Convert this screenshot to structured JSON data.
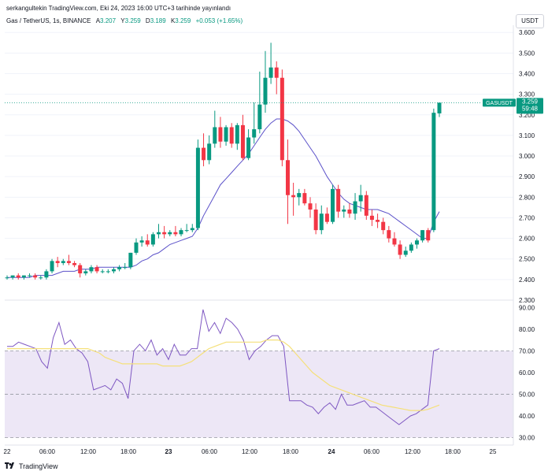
{
  "header": {
    "attribution": "serkangultekin TradingView.com, Eki 24, 2023 16:00 UTC+3 tarihinde yayınlandı"
  },
  "legend": {
    "symbol": "Gas / TetherUS, 1s, BINANCE",
    "open_label": "A",
    "open": "3.207",
    "high_label": "Y",
    "high": "3.259",
    "low_label": "D",
    "low": "3.189",
    "close_label": "K",
    "close": "3.259",
    "change": "+0.053 (+1.65%)"
  },
  "currency_button": "USDT",
  "price_tag": {
    "symbol": "GASUSDT",
    "price": "3.259",
    "countdown": "59:48"
  },
  "colors": {
    "up": "#089981",
    "down": "#f23645",
    "ma": "#5b51c9",
    "rsi": "#7e57c2",
    "rsi_ma": "#f5e07a",
    "rsi_band": "#ede7f6"
  },
  "footer": {
    "brand": "TradingView",
    "logo_icon": "tradingview-logo-icon"
  },
  "chart_data": [
    {
      "type": "candlestick",
      "title": "Gas / TetherUS, 1s, BINANCE",
      "y_ticks": [
        "3.600",
        "3.500",
        "3.400",
        "3.300",
        "3.200",
        "3.100",
        "3.000",
        "2.900",
        "2.800",
        "2.700",
        "2.600",
        "2.500",
        "2.400",
        "2.300"
      ],
      "ylim": [
        2.3,
        3.62
      ],
      "x_ticks": [
        "22",
        "06:00",
        "12:00",
        "18:00",
        "23",
        "06:00",
        "12:00",
        "18:00",
        "24",
        "06:00",
        "12:00",
        "18:00",
        "25"
      ],
      "candles": [
        [
          2.41,
          2.42,
          2.4,
          2.41
        ],
        [
          2.41,
          2.42,
          2.4,
          2.42
        ],
        [
          2.42,
          2.43,
          2.4,
          2.41
        ],
        [
          2.41,
          2.42,
          2.4,
          2.42
        ],
        [
          2.42,
          2.43,
          2.41,
          2.42
        ],
        [
          2.42,
          2.43,
          2.4,
          2.41
        ],
        [
          2.41,
          2.42,
          2.4,
          2.41
        ],
        [
          2.41,
          2.45,
          2.4,
          2.44
        ],
        [
          2.44,
          2.5,
          2.43,
          2.49
        ],
        [
          2.49,
          2.51,
          2.46,
          2.48
        ],
        [
          2.48,
          2.5,
          2.47,
          2.49
        ],
        [
          2.49,
          2.52,
          2.47,
          2.48
        ],
        [
          2.48,
          2.49,
          2.46,
          2.47
        ],
        [
          2.47,
          2.48,
          2.41,
          2.43
        ],
        [
          2.43,
          2.45,
          2.42,
          2.44
        ],
        [
          2.44,
          2.47,
          2.43,
          2.46
        ],
        [
          2.46,
          2.47,
          2.43,
          2.44
        ],
        [
          2.44,
          2.45,
          2.43,
          2.44
        ],
        [
          2.44,
          2.45,
          2.43,
          2.44
        ],
        [
          2.44,
          2.46,
          2.43,
          2.45
        ],
        [
          2.45,
          2.47,
          2.44,
          2.46
        ],
        [
          2.46,
          2.48,
          2.45,
          2.46
        ],
        [
          2.46,
          2.53,
          2.45,
          2.53
        ],
        [
          2.53,
          2.6,
          2.52,
          2.58
        ],
        [
          2.58,
          2.61,
          2.56,
          2.59
        ],
        [
          2.59,
          2.62,
          2.56,
          2.57
        ],
        [
          2.57,
          2.63,
          2.56,
          2.62
        ],
        [
          2.62,
          2.67,
          2.6,
          2.63
        ],
        [
          2.63,
          2.66,
          2.6,
          2.62
        ],
        [
          2.62,
          2.64,
          2.61,
          2.63
        ],
        [
          2.63,
          2.66,
          2.61,
          2.62
        ],
        [
          2.62,
          2.65,
          2.61,
          2.64
        ],
        [
          2.64,
          2.67,
          2.63,
          2.64
        ],
        [
          2.64,
          2.67,
          2.63,
          2.65
        ],
        [
          2.65,
          3.08,
          2.64,
          3.04
        ],
        [
          3.04,
          3.11,
          2.95,
          2.98
        ],
        [
          2.98,
          3.1,
          2.96,
          3.06
        ],
        [
          3.06,
          3.22,
          3.04,
          3.14
        ],
        [
          3.14,
          3.19,
          3.04,
          3.07
        ],
        [
          3.07,
          3.15,
          3.05,
          3.14
        ],
        [
          3.14,
          3.16,
          3.04,
          3.06
        ],
        [
          3.06,
          3.16,
          3.03,
          3.15
        ],
        [
          3.15,
          3.2,
          2.98,
          2.99
        ],
        [
          2.99,
          3.13,
          2.98,
          3.09
        ],
        [
          3.09,
          3.26,
          3.06,
          3.13
        ],
        [
          3.13,
          3.41,
          3.11,
          3.25
        ],
        [
          3.25,
          3.51,
          3.21,
          3.38
        ],
        [
          3.38,
          3.55,
          3.35,
          3.43
        ],
        [
          3.43,
          3.46,
          3.3,
          3.38
        ],
        [
          3.38,
          3.42,
          2.95,
          2.98
        ],
        [
          2.98,
          3.08,
          2.67,
          2.81
        ],
        [
          2.81,
          2.87,
          2.71,
          2.8
        ],
        [
          2.8,
          2.84,
          2.76,
          2.82
        ],
        [
          2.82,
          2.84,
          2.76,
          2.77
        ],
        [
          2.77,
          2.8,
          2.7,
          2.74
        ],
        [
          2.74,
          2.77,
          2.62,
          2.64
        ],
        [
          2.64,
          2.76,
          2.62,
          2.72
        ],
        [
          2.72,
          2.75,
          2.67,
          2.68
        ],
        [
          2.68,
          2.86,
          2.67,
          2.84
        ],
        [
          2.84,
          2.86,
          2.7,
          2.73
        ],
        [
          2.73,
          2.76,
          2.7,
          2.74
        ],
        [
          2.74,
          2.77,
          2.7,
          2.72
        ],
        [
          2.72,
          2.82,
          2.69,
          2.78
        ],
        [
          2.78,
          2.86,
          2.73,
          2.81
        ],
        [
          2.81,
          2.83,
          2.69,
          2.71
        ],
        [
          2.71,
          2.74,
          2.66,
          2.69
        ],
        [
          2.69,
          2.72,
          2.65,
          2.68
        ],
        [
          2.68,
          2.7,
          2.62,
          2.64
        ],
        [
          2.64,
          2.66,
          2.58,
          2.6
        ],
        [
          2.6,
          2.63,
          2.56,
          2.57
        ],
        [
          2.57,
          2.59,
          2.5,
          2.52
        ],
        [
          2.52,
          2.56,
          2.51,
          2.54
        ],
        [
          2.54,
          2.58,
          2.53,
          2.57
        ],
        [
          2.57,
          2.6,
          2.55,
          2.59
        ],
        [
          2.59,
          2.64,
          2.58,
          2.64
        ],
        [
          2.64,
          2.65,
          2.58,
          2.59
        ],
        [
          2.64,
          3.23,
          2.63,
          3.21
        ],
        [
          3.207,
          3.259,
          3.189,
          3.259
        ]
      ],
      "moving_average": [
        2.41,
        2.41,
        2.41,
        2.41,
        2.41,
        2.42,
        2.42,
        2.42,
        2.42,
        2.43,
        2.44,
        2.44,
        2.44,
        2.45,
        2.45,
        2.45,
        2.46,
        2.46,
        2.46,
        2.46,
        2.46,
        2.46,
        2.46,
        2.47,
        2.49,
        2.5,
        2.52,
        2.53,
        2.55,
        2.57,
        2.58,
        2.59,
        2.6,
        2.61,
        2.65,
        2.71,
        2.76,
        2.81,
        2.86,
        2.89,
        2.92,
        2.95,
        2.98,
        3.01,
        3.05,
        3.09,
        3.13,
        3.16,
        3.18,
        3.18,
        3.17,
        3.15,
        3.12,
        3.08,
        3.04,
        3.0,
        2.95,
        2.9,
        2.86,
        2.82,
        2.79,
        2.77,
        2.76,
        2.75,
        2.74,
        2.74,
        2.74,
        2.73,
        2.72,
        2.7,
        2.68,
        2.66,
        2.64,
        2.62,
        2.6,
        2.6,
        2.68,
        2.73
      ],
      "last_price": 3.259
    },
    {
      "type": "line",
      "y_ticks": [
        "90.00",
        "80.00",
        "70.00",
        "60.00",
        "50.00",
        "40.00",
        "30.00"
      ],
      "ylim": [
        28,
        93
      ],
      "band": [
        30,
        70
      ],
      "series": [
        {
          "values": [
            72,
            72,
            74,
            73,
            72,
            71,
            65,
            62,
            76,
            83,
            73,
            75,
            71,
            69,
            65,
            52,
            53,
            54,
            52,
            57,
            55,
            48,
            70,
            73,
            70,
            75,
            68,
            71,
            66,
            73,
            68,
            68,
            71,
            71,
            89,
            79,
            83,
            78,
            85,
            83,
            80,
            75,
            66,
            70,
            72,
            75,
            77,
            77,
            72,
            47,
            47,
            47,
            45,
            44,
            41,
            44,
            46,
            43,
            50,
            45,
            45,
            46,
            47,
            44,
            44,
            42,
            40,
            38,
            36,
            38,
            40,
            41,
            43,
            45,
            70,
            71
          ]
        },
        {
          "values": [
            71,
            71,
            71,
            71,
            71,
            71,
            71,
            71,
            71,
            71,
            71,
            71,
            71,
            71,
            71,
            70,
            69,
            67,
            66,
            65,
            64,
            64,
            64,
            64,
            64,
            64,
            64,
            63,
            63,
            63,
            63,
            64,
            65,
            67,
            69,
            71,
            72,
            73,
            74,
            74,
            74,
            74,
            74,
            74,
            74,
            75,
            75,
            75,
            74,
            72,
            69,
            66,
            63,
            60,
            58,
            56,
            54,
            53,
            52,
            51,
            50,
            49,
            48,
            47,
            46,
            45,
            44.5,
            44,
            43.5,
            43,
            42.5,
            42.5,
            42.5,
            43,
            44,
            45
          ]
        }
      ]
    }
  ]
}
